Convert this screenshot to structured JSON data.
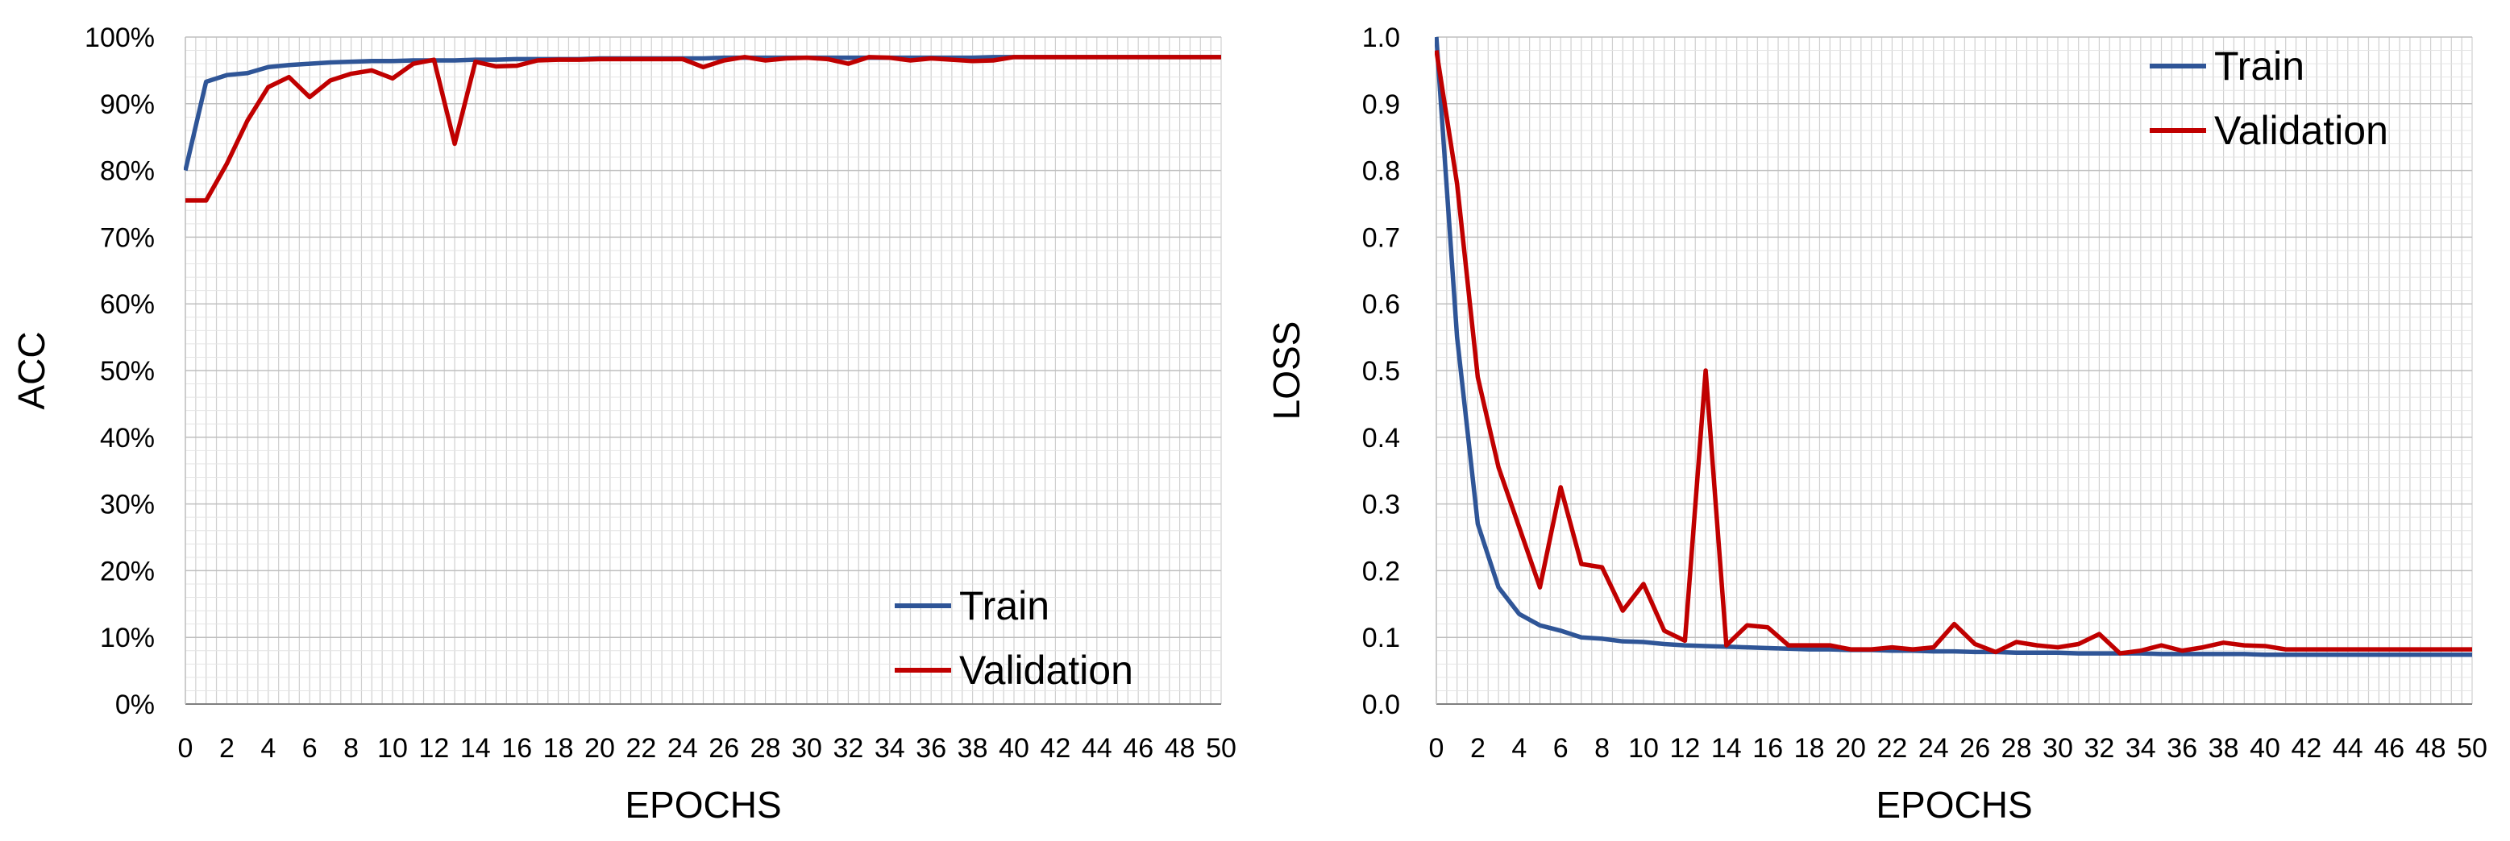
{
  "colors": {
    "train": "#2F5597",
    "validation": "#C00000",
    "grid": "#D0D0D0",
    "axis": "#000000",
    "text": "#000000"
  },
  "chart_data": [
    {
      "type": "line",
      "title": "",
      "xlabel": "EPOCHS",
      "ylabel": "ACC",
      "xlim": [
        0,
        50
      ],
      "ylim": [
        0,
        100
      ],
      "y_unit": "%",
      "x_tick_labels": [
        "0",
        "2",
        "4",
        "6",
        "8",
        "10",
        "12",
        "14",
        "16",
        "18",
        "20",
        "22",
        "24",
        "26",
        "28",
        "30",
        "32",
        "34",
        "36",
        "38",
        "40",
        "42",
        "44",
        "46",
        "48",
        "50"
      ],
      "y_tick_labels": [
        "0%",
        "10%",
        "20%",
        "30%",
        "40%",
        "50%",
        "60%",
        "70%",
        "80%",
        "90%",
        "100%"
      ],
      "legend_position": "bottom-right",
      "x": [
        0,
        1,
        2,
        3,
        4,
        5,
        6,
        7,
        8,
        9,
        10,
        11,
        12,
        13,
        14,
        15,
        16,
        17,
        18,
        19,
        20,
        21,
        22,
        23,
        24,
        25,
        26,
        27,
        28,
        29,
        30,
        31,
        32,
        33,
        34,
        35,
        36,
        37,
        38,
        39,
        40,
        41,
        42,
        43,
        44,
        45,
        46,
        47,
        48,
        49,
        50
      ],
      "series": [
        {
          "name": "Train",
          "values": [
            80,
            93.3,
            94.3,
            94.6,
            95.5,
            95.8,
            96.0,
            96.2,
            96.3,
            96.4,
            96.4,
            96.5,
            96.5,
            96.5,
            96.6,
            96.6,
            96.7,
            96.7,
            96.7,
            96.7,
            96.8,
            96.8,
            96.8,
            96.8,
            96.8,
            96.8,
            96.9,
            96.9,
            96.9,
            96.9,
            96.9,
            96.9,
            96.9,
            96.9,
            96.9,
            96.9,
            96.9,
            96.9,
            96.9,
            97.0,
            97.0,
            97.0,
            97.0,
            97.0,
            97.0,
            97.0,
            97.0,
            97.0,
            97.0,
            97.0,
            97.0
          ]
        },
        {
          "name": "Validation",
          "values": [
            75.5,
            75.5,
            81.0,
            87.5,
            92.5,
            94.0,
            91.0,
            93.5,
            94.5,
            95.0,
            93.8,
            96.0,
            96.6,
            84.0,
            96.3,
            95.6,
            95.7,
            96.5,
            96.6,
            96.6,
            96.7,
            96.7,
            96.7,
            96.7,
            96.7,
            95.5,
            96.5,
            97.0,
            96.5,
            96.8,
            96.9,
            96.7,
            96.0,
            97.0,
            96.9,
            96.5,
            96.8,
            96.6,
            96.4,
            96.5,
            97.0,
            97.0,
            97.0,
            97.0,
            97.0,
            97.0,
            97.0,
            97.0,
            97.0,
            97.0,
            97.0
          ]
        }
      ]
    },
    {
      "type": "line",
      "title": "",
      "xlabel": "EPOCHS",
      "ylabel": "LOSS",
      "xlim": [
        0,
        50
      ],
      "ylim": [
        0,
        1.0
      ],
      "x_tick_labels": [
        "0",
        "2",
        "4",
        "6",
        "8",
        "10",
        "12",
        "14",
        "16",
        "18",
        "20",
        "22",
        "24",
        "26",
        "28",
        "30",
        "32",
        "34",
        "36",
        "38",
        "40",
        "42",
        "44",
        "46",
        "48",
        "50"
      ],
      "y_tick_labels": [
        "0.0",
        "0.1",
        "0.2",
        "0.3",
        "0.4",
        "0.5",
        "0.6",
        "0.7",
        "0.8",
        "0.9",
        "1.0"
      ],
      "legend_position": "top-right",
      "x": [
        0,
        1,
        2,
        3,
        4,
        5,
        6,
        7,
        8,
        9,
        10,
        11,
        12,
        13,
        14,
        15,
        16,
        17,
        18,
        19,
        20,
        21,
        22,
        23,
        24,
        25,
        26,
        27,
        28,
        29,
        30,
        31,
        32,
        33,
        34,
        35,
        36,
        37,
        38,
        39,
        40,
        41,
        42,
        43,
        44,
        45,
        46,
        47,
        48,
        49,
        50
      ],
      "series": [
        {
          "name": "Train",
          "values": [
            1.0,
            0.55,
            0.27,
            0.175,
            0.135,
            0.118,
            0.11,
            0.1,
            0.098,
            0.094,
            0.093,
            0.09,
            0.088,
            0.087,
            0.086,
            0.085,
            0.084,
            0.083,
            0.082,
            0.082,
            0.081,
            0.081,
            0.08,
            0.08,
            0.079,
            0.079,
            0.078,
            0.078,
            0.077,
            0.077,
            0.077,
            0.076,
            0.076,
            0.076,
            0.076,
            0.075,
            0.075,
            0.075,
            0.075,
            0.075,
            0.074,
            0.074,
            0.074,
            0.074,
            0.074,
            0.074,
            0.074,
            0.074,
            0.074,
            0.074,
            0.074
          ]
        },
        {
          "name": "Validation",
          "values": [
            0.98,
            0.78,
            0.49,
            0.355,
            0.265,
            0.175,
            0.325,
            0.21,
            0.205,
            0.14,
            0.18,
            0.11,
            0.095,
            0.5,
            0.088,
            0.118,
            0.115,
            0.088,
            0.088,
            0.088,
            0.082,
            0.082,
            0.085,
            0.082,
            0.085,
            0.12,
            0.09,
            0.078,
            0.093,
            0.088,
            0.085,
            0.09,
            0.105,
            0.076,
            0.08,
            0.088,
            0.08,
            0.085,
            0.092,
            0.088,
            0.087,
            0.082,
            0.082,
            0.082,
            0.082,
            0.082,
            0.082,
            0.082,
            0.082,
            0.082,
            0.082
          ]
        }
      ]
    }
  ]
}
